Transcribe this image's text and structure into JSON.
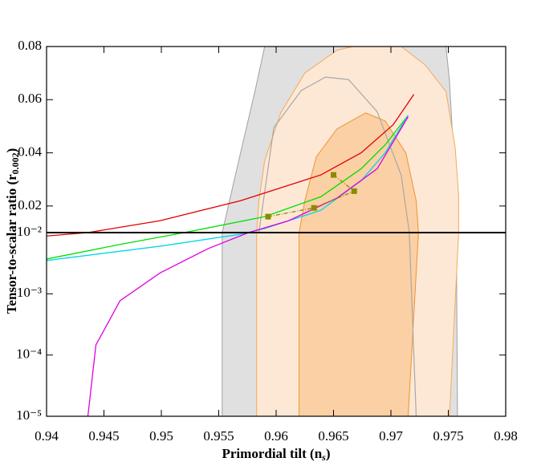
{
  "chart_data": {
    "type": "line",
    "xlabel": {
      "text": "Primordial tilt (n",
      "sub": "s",
      "end": ")"
    },
    "ylabel": {
      "text": "Tensor-to-scalar ratio (r",
      "sub": "0.002",
      "end": ")"
    },
    "xlim": [
      0.94,
      0.98
    ],
    "xticks": [
      0.94,
      0.945,
      0.95,
      0.955,
      0.96,
      0.965,
      0.97,
      0.975,
      0.98
    ],
    "ylim": [
      0.01,
      0.08
    ],
    "yticks": [
      0.02,
      0.04,
      0.06,
      0.08
    ],
    "lower_ylim": [
      1e-05,
      0.01
    ],
    "lower_log_scale": true,
    "lower_yticks": [
      {
        "value": 0.01,
        "label": "10⁻²"
      },
      {
        "value": 0.001,
        "label": "10⁻³"
      },
      {
        "value": 0.0001,
        "label": "10⁻⁴"
      },
      {
        "value": 1e-05,
        "label": "10⁻⁵"
      }
    ],
    "regions": [
      {
        "fill": "#e0e0e0",
        "color": "#a0a0a0",
        "x": [
          0.9553,
          0.9553,
          0.9569,
          0.9582,
          0.959,
          0.9748,
          0.9751,
          0.9755,
          0.9757,
          0.9758
        ],
        "y": [
          1e-05,
          0.01,
          0.04,
          0.064,
          0.08,
          0.08,
          0.067,
          0.037,
          0.01,
          1e-05
        ]
      },
      {
        "fill": "#fde8d6",
        "color": "#f5a95a",
        "x": [
          0.9583,
          0.9583,
          0.9585,
          0.959,
          0.9604,
          0.9625,
          0.9653,
          0.9667,
          0.9709,
          0.973,
          0.9748,
          0.9756,
          0.9759,
          0.9759,
          0.9751
        ],
        "y": [
          1e-05,
          0.01,
          0.022,
          0.037,
          0.055,
          0.07,
          0.0786,
          0.08,
          0.08,
          0.073,
          0.063,
          0.042,
          0.024,
          0.01,
          1e-05
        ]
      },
      {
        "fill": "#fbd0a5",
        "color": "#f0932f",
        "x": [
          0.962,
          0.962,
          0.9625,
          0.9635,
          0.9653,
          0.9678,
          0.9695,
          0.9713,
          0.9722,
          0.9724,
          0.9715
        ],
        "y": [
          1e-05,
          0.01,
          0.022,
          0.0385,
          0.049,
          0.055,
          0.052,
          0.04,
          0.022,
          0.01,
          1e-05
        ]
      }
    ],
    "contour_lines": [
      {
        "color": "#a8a8a8",
        "x": [
          0.9585,
          0.9598,
          0.9622,
          0.9643,
          0.9663,
          0.9688,
          0.9709,
          0.9716,
          0.9722
        ],
        "y": [
          0.01,
          0.0495,
          0.0635,
          0.0685,
          0.0676,
          0.0555,
          0.0315,
          0.01,
          1e-05
        ]
      }
    ],
    "series": [
      {
        "color": "#e00000",
        "x": [
          0.94,
          0.9436,
          0.9499,
          0.9569,
          0.9639,
          0.9674,
          0.9702,
          0.972
        ],
        "y": [
          0.0088,
          0.01,
          0.0145,
          0.022,
          0.0317,
          0.04,
          0.0506,
          0.062
        ]
      },
      {
        "color": "#00e000",
        "x": [
          0.94,
          0.9464,
          0.952,
          0.959,
          0.9639,
          0.9674,
          0.9695,
          0.9714
        ],
        "y": [
          0.0037,
          0.0064,
          0.01,
          0.016,
          0.0235,
          0.034,
          0.043,
          0.0536
        ]
      },
      {
        "color": "#00d8e8",
        "x": [
          0.94,
          0.9499,
          0.9569,
          0.959,
          0.9639,
          0.9674,
          0.9695,
          0.9715
        ],
        "y": [
          0.0035,
          0.006,
          0.0094,
          0.0115,
          0.0184,
          0.0295,
          0.04,
          0.0542
        ]
      },
      {
        "color": "#e000e0",
        "x": [
          0.9436,
          0.9443,
          0.9464,
          0.9499,
          0.9541,
          0.9576,
          0.9611,
          0.9653,
          0.9688,
          0.9715
        ],
        "y": [
          1e-05,
          0.000146,
          0.00077,
          0.0022,
          0.0055,
          0.01,
          0.0145,
          0.023,
          0.034,
          0.0536
        ]
      },
      {
        "color": "#8b8b00",
        "markers": true,
        "dashed": true,
        "x": [
          0.9593,
          0.9633,
          0.9668,
          0.965
        ],
        "y": [
          0.016,
          0.0193,
          0.0256,
          0.0317
        ]
      }
    ]
  }
}
